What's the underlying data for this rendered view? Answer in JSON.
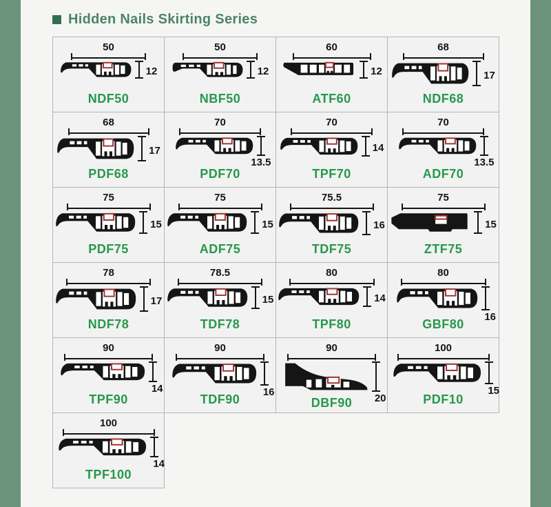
{
  "title": {
    "bullet": "■",
    "text": "Hidden Nails Skirting Series"
  },
  "colors": {
    "page_bg": "#f5f6f4",
    "bar_green": "#6b937c",
    "title_green": "#4d8367",
    "bullet_green": "#336e50",
    "code_green": "#27984b",
    "cell_bg": "#f1f2f1",
    "border_gray": "#b5b5b5",
    "ink": "#151515",
    "clip_red": "#a33434"
  },
  "products": [
    {
      "code": "NDF50",
      "width": "50",
      "height": "12",
      "hpos": "mid",
      "variant": "hook"
    },
    {
      "code": "NBF50",
      "width": "50",
      "height": "12",
      "hpos": "mid",
      "variant": "block"
    },
    {
      "code": "ATF60",
      "width": "60",
      "height": "12",
      "hpos": "mid",
      "variant": "wedge"
    },
    {
      "code": "NDF68",
      "width": "68",
      "height": "17",
      "hpos": "mid",
      "variant": "hook"
    },
    {
      "code": "PDF68",
      "width": "68",
      "height": "17",
      "hpos": "mid",
      "variant": "hook"
    },
    {
      "code": "PDF70",
      "width": "70",
      "height": "13.5",
      "hpos": "below",
      "variant": "hook"
    },
    {
      "code": "TPF70",
      "width": "70",
      "height": "14",
      "hpos": "mid",
      "variant": "hook"
    },
    {
      "code": "ADF70",
      "width": "70",
      "height": "13.5",
      "hpos": "below",
      "variant": "hook"
    },
    {
      "code": "PDF75",
      "width": "75",
      "height": "15",
      "hpos": "mid",
      "variant": "hook"
    },
    {
      "code": "ADF75",
      "width": "75",
      "height": "15",
      "hpos": "mid",
      "variant": "hook"
    },
    {
      "code": "TDF75",
      "width": "75.5",
      "height": "16",
      "hpos": "mid",
      "variant": "hook"
    },
    {
      "code": "ZTF75",
      "width": "75",
      "height": "15",
      "hpos": "mid",
      "variant": "solid"
    },
    {
      "code": "NDF78",
      "width": "78",
      "height": "17",
      "hpos": "mid",
      "variant": "hook"
    },
    {
      "code": "TDF78",
      "width": "78.5",
      "height": "15",
      "hpos": "mid",
      "variant": "hook"
    },
    {
      "code": "TPF80",
      "width": "80",
      "height": "14",
      "hpos": "mid",
      "variant": "hook"
    },
    {
      "code": "GBF80",
      "width": "80",
      "height": "16",
      "hpos": "below",
      "variant": "hook"
    },
    {
      "code": "TPF90",
      "width": "90",
      "height": "14",
      "hpos": "below",
      "variant": "hook"
    },
    {
      "code": "TDF90",
      "width": "90",
      "height": "16",
      "hpos": "below",
      "variant": "hook"
    },
    {
      "code": "DBF90",
      "width": "90",
      "height": "20",
      "hpos": "below",
      "variant": "hump"
    },
    {
      "code": "PDF10",
      "width": "100",
      "height": "15",
      "hpos": "below",
      "variant": "hook"
    },
    {
      "code": "TPF100",
      "width": "100",
      "height": "14",
      "hpos": "below",
      "variant": "hook"
    }
  ]
}
